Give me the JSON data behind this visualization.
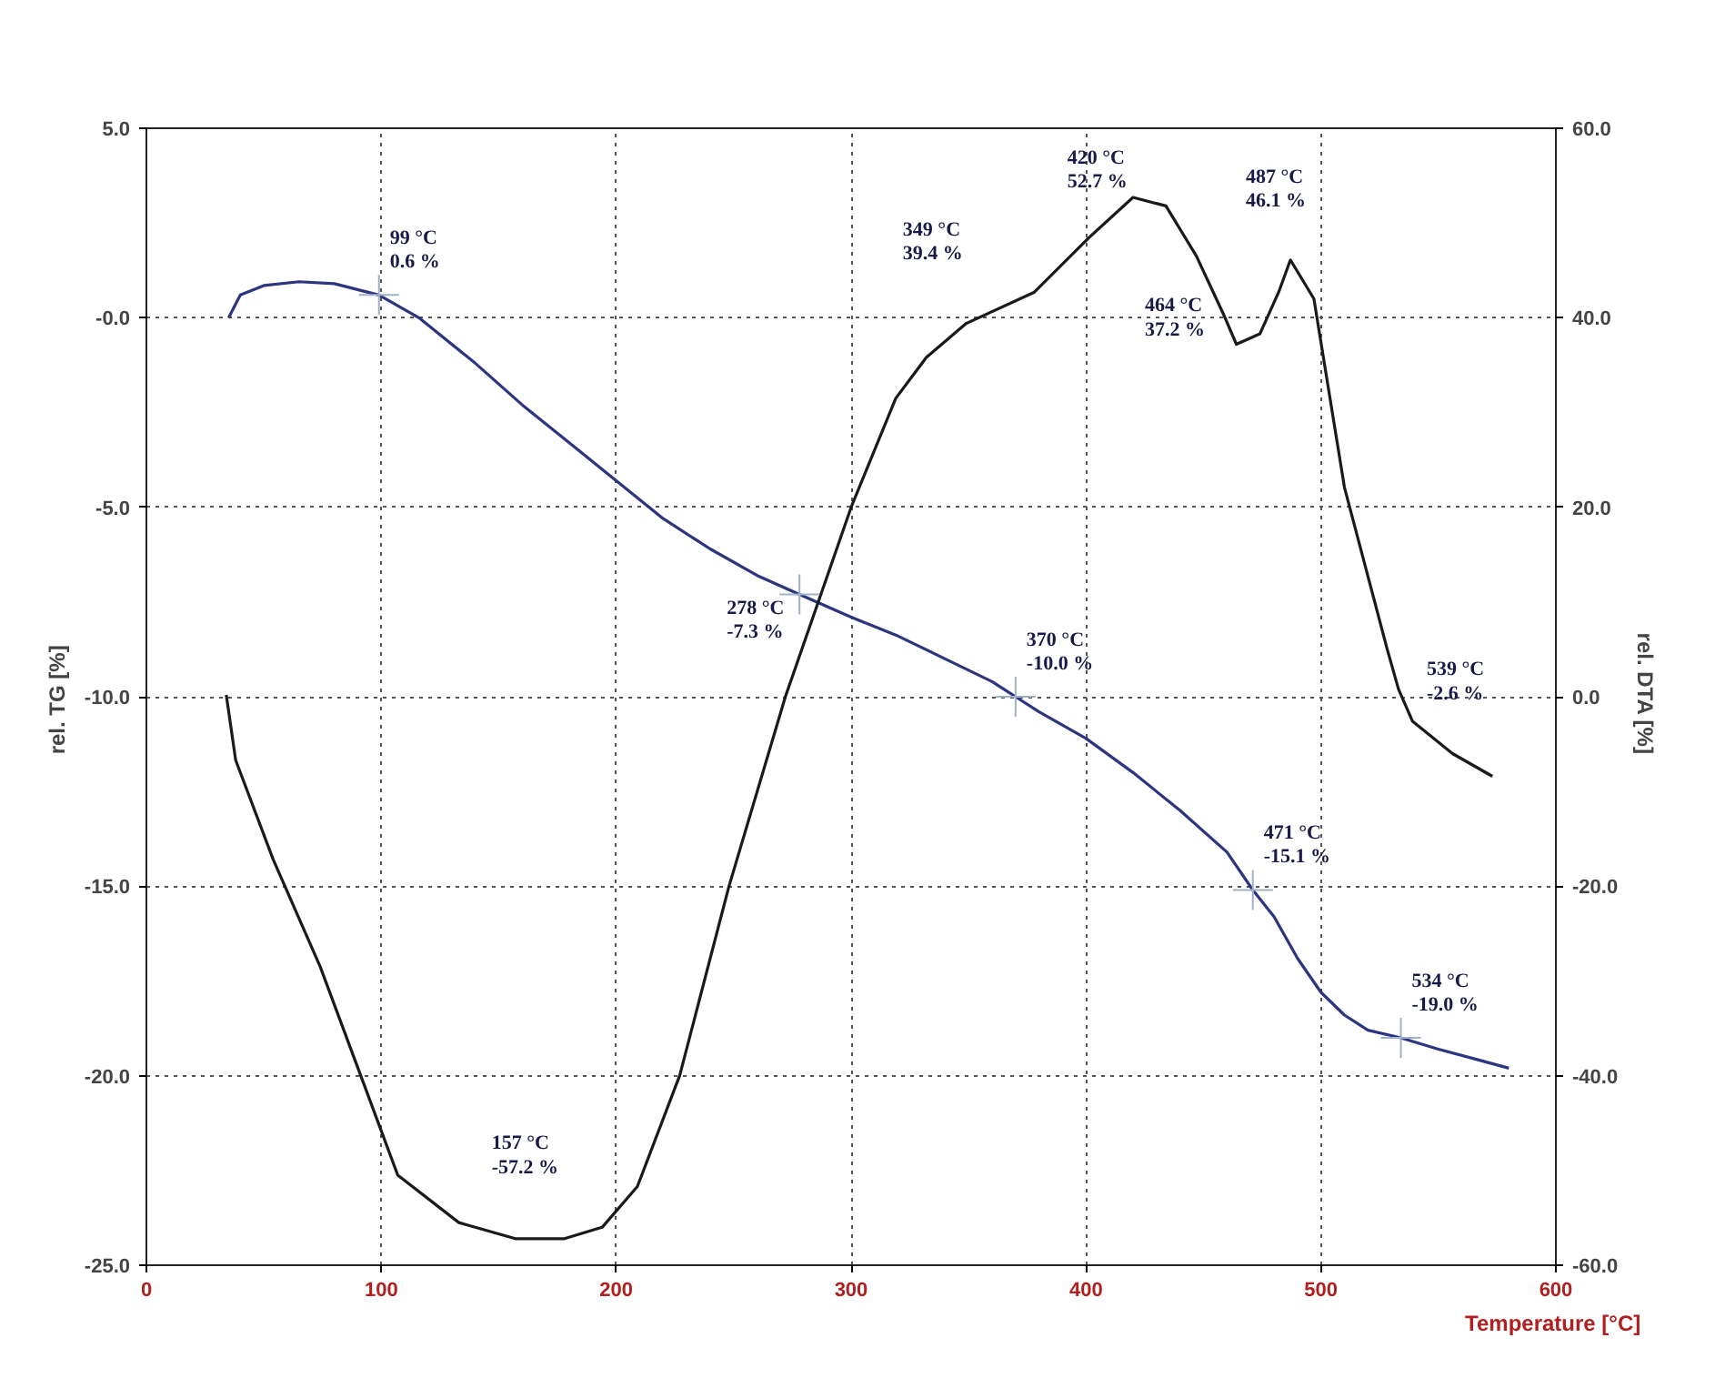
{
  "chart_data": {
    "type": "line",
    "xlabel": "Temperature  [°C]",
    "ylabel": "rel. TG  [%]",
    "y2label": "rel. DTA  [%]",
    "xlim": [
      0,
      600
    ],
    "xticks": [
      0,
      100,
      200,
      300,
      400,
      500,
      600
    ],
    "ylim": [
      -25,
      5
    ],
    "yticks": [
      {
        "value": 5,
        "label": "5.0"
      },
      {
        "value": 0,
        "label": "-0.0"
      },
      {
        "value": -5,
        "label": "-5.0"
      },
      {
        "value": -10,
        "label": "-10.0"
      },
      {
        "value": -15,
        "label": "-15.0"
      },
      {
        "value": -20,
        "label": "-20.0"
      },
      {
        "value": -25,
        "label": "-25.0"
      }
    ],
    "y2lim": [
      -60,
      60
    ],
    "y2ticks": [
      {
        "value": 60,
        "label": "60.0"
      },
      {
        "value": 40,
        "label": "40.0"
      },
      {
        "value": 20,
        "label": "20.0"
      },
      {
        "value": 0,
        "label": "0.0"
      },
      {
        "value": -20,
        "label": "-20.0"
      },
      {
        "value": -40,
        "label": "-40.0"
      },
      {
        "value": -60,
        "label": "-60.0"
      }
    ],
    "grid": true,
    "line_style": "solid",
    "marker": "none",
    "series": [
      {
        "color": "#2c3580",
        "x": [
          35,
          40,
          50,
          65,
          80,
          99,
          116,
          140,
          160,
          180,
          200,
          220,
          240,
          260,
          278,
          300,
          320,
          340,
          360,
          370,
          380,
          400,
          420,
          440,
          460,
          471,
          480,
          490,
          500,
          510,
          520,
          534,
          550,
          565,
          580
        ],
        "values": [
          0.0,
          0.6,
          0.85,
          0.95,
          0.9,
          0.6,
          0.0,
          -1.2,
          -2.3,
          -3.3,
          -4.3,
          -5.3,
          -6.1,
          -6.8,
          -7.3,
          -7.9,
          -8.4,
          -9.0,
          -9.6,
          -10.0,
          -10.4,
          -11.1,
          -12.0,
          -13.0,
          -14.1,
          -15.1,
          -15.8,
          -16.9,
          -17.8,
          -18.4,
          -18.8,
          -19.0,
          -19.3,
          -19.55,
          -19.8
        ]
      },
      {
        "color": "#1a1a1a",
        "axis": "y2",
        "x": [
          34,
          38,
          54,
          74,
          92,
          107,
          133,
          157,
          178,
          194,
          209,
          227,
          248,
          272,
          300,
          319,
          332,
          349,
          378,
          401,
          420,
          434,
          447,
          459,
          464,
          474,
          482,
          487,
          497,
          510,
          520,
          528,
          533,
          539,
          556,
          573
        ],
        "values": [
          0.2,
          -6.7,
          -17.2,
          -28.5,
          -40.5,
          -50.5,
          -55.5,
          -57.2,
          -57.2,
          -56.0,
          -51.7,
          -40.0,
          -20.0,
          0.0,
          20.0,
          31.5,
          35.8,
          39.4,
          42.7,
          48.4,
          52.7,
          51.8,
          46.5,
          40.1,
          37.2,
          38.3,
          42.7,
          46.1,
          42.0,
          22.1,
          12.7,
          5.2,
          0.8,
          -2.6,
          -6.0,
          -8.4
        ]
      }
    ],
    "annotations": [
      {
        "text": "99 °C\n0.6 %",
        "x": 99,
        "y": 0.6
      },
      {
        "text": "278 °C\n-7.3 %",
        "x": 278,
        "y": -7.3
      },
      {
        "text": "370 °C\n-10.0 %",
        "x": 370,
        "y": -10.0
      },
      {
        "text": "471 °C\n-15.1 %",
        "x": 471,
        "y": -15.1
      },
      {
        "text": "534 °C\n-19.0 %",
        "x": 534,
        "y": -19.0
      },
      "157 °C\n-57.2 %",
      "349 °C\n39.4 %",
      "420 °C\n52.7 %",
      "464 °C\n37.2 %",
      "487 °C\n46.1 %",
      "539 °C\n-2.6 %"
    ]
  }
}
